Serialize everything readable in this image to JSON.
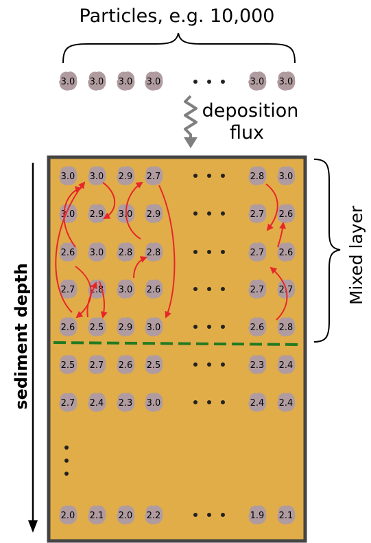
{
  "title": "Particles, e.g. 10,000",
  "deposition_label": [
    "deposition",
    "flux"
  ],
  "mixed_layer_label": "Mixed layer",
  "depth_label": "sediment depth",
  "colors": {
    "sediment": "#e0ad48",
    "particle": "#b09ca0",
    "frame": "#444444",
    "arrow": "#e8262a",
    "boundary": "#227a22",
    "flux_arrow": "#7f7f7f"
  },
  "incoming_particles": {
    "left": [
      "3.0",
      "3.0",
      "3.0",
      "3.0"
    ],
    "right": [
      "3.0",
      "3.0"
    ]
  },
  "rows": [
    {
      "left": [
        "3.0",
        "3.0",
        "2.9",
        "2.7"
      ],
      "right": [
        "2.8",
        "3.0"
      ]
    },
    {
      "left": [
        "3.0",
        "2.9",
        "3.0",
        "2.9"
      ],
      "right": [
        "2.7",
        "2.6"
      ]
    },
    {
      "left": [
        "2.6",
        "3.0",
        "2.8",
        "2.8"
      ],
      "right": [
        "2.7",
        "2.6"
      ]
    },
    {
      "left": [
        "2.7",
        "2.8",
        "3.0",
        "2.6"
      ],
      "right": [
        "2.7",
        "2.7"
      ]
    },
    {
      "left": [
        "2.6",
        "2.5",
        "2.9",
        "3.0"
      ],
      "right": [
        "2.6",
        "2.8"
      ]
    },
    {
      "left": [
        "2.5",
        "2.7",
        "2.6",
        "2.5"
      ],
      "right": [
        "2.3",
        "2.4"
      ]
    },
    {
      "left": [
        "2.7",
        "2.4",
        "2.3",
        "3.0"
      ],
      "right": [
        "2.4",
        "2.4"
      ]
    }
  ],
  "bottom_row": {
    "left": [
      "2.0",
      "2.1",
      "2.0",
      "2.2"
    ],
    "right": [
      "1.9",
      "2.1"
    ]
  }
}
